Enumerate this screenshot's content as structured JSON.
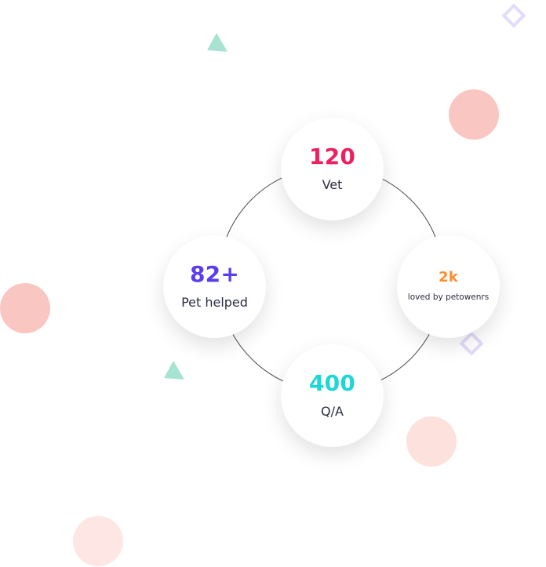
{
  "colors": {
    "vet": "#ef1f5e",
    "pet_helped": "#5b3cf0",
    "loved": "#ff8c2e",
    "qa": "#1fd6d6",
    "label": "#2b2d42",
    "blob_pink": "#f9c6c2",
    "blob_light": "#fde1dd",
    "triangle": "#a7e3d2",
    "diamond": "#e4dbfb"
  },
  "stats": [
    {
      "value": "120",
      "label": "Vet"
    },
    {
      "value": "82+",
      "label": "Pet helped"
    },
    {
      "value": "2k",
      "label": "loved by petowenrs"
    },
    {
      "value": "400",
      "label": "Q/A"
    }
  ],
  "decorations": [
    "triangle-icon",
    "diamond-icon",
    "circle-blob"
  ]
}
